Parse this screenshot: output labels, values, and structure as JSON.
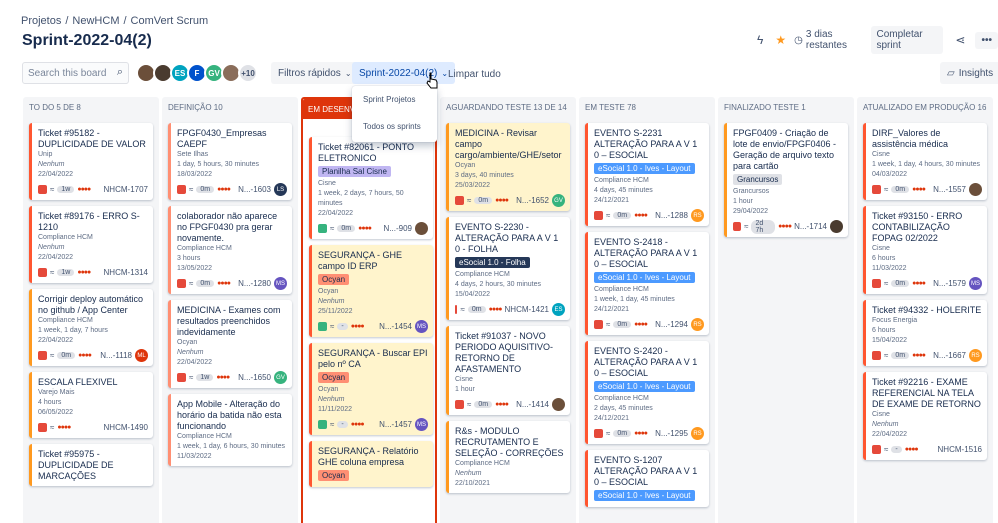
{
  "breadcrumb": [
    "Projetos",
    "/",
    "NewHCM",
    "/",
    "ComVert Scrum"
  ],
  "title": "Sprint-2022-04(2)",
  "header": {
    "days_left": "3 dias restantes",
    "complete_sprint": "Completar sprint"
  },
  "search": {
    "placeholder": "Search this board"
  },
  "avatars": [
    {
      "initials": "",
      "color": "#6b4f3a"
    },
    {
      "initials": "",
      "color": "#4a3b2f"
    },
    {
      "initials": "ES",
      "color": "#00a3bf"
    },
    {
      "initials": "F",
      "color": "#0052cc"
    },
    {
      "initials": "GV",
      "color": "#36b37e"
    },
    {
      "initials": "",
      "color": "#8a6d5a"
    },
    {
      "initials": "+10",
      "color": "#dfe1e6"
    }
  ],
  "filters": {
    "quick": "Filtros rápidos",
    "sprint": "Sprint-2022-04(2)",
    "clear": "Limpar tudo",
    "insights": "Insights"
  },
  "dropdown": {
    "items": [
      "Sprint Projetos",
      "Todos os sprints"
    ]
  },
  "columns": [
    {
      "title": "TO DO 5 de 8",
      "cards": [
        {
          "title": "Ticket #95182 - DUPLICIDADE DE VALOR",
          "meta1": "Unip",
          "meta2": "Nenhum",
          "date": "22/04/2022",
          "pill": "1w",
          "key": "NHCM-1707",
          "color": "#ff5630",
          "avatar": "",
          "avc": ""
        },
        {
          "title": "Ticket #89176 - ERRO S-1210",
          "meta1": "Compliance HCM",
          "meta2": "Nenhum",
          "date": "22/04/2022",
          "pill": "1w",
          "key": "NHCM-1314",
          "color": "#ff5630",
          "avatar": "",
          "avc": ""
        },
        {
          "title": "Corrigir deploy automático no github / App Center",
          "meta1": "Compliance HCM",
          "meta2": "1 week, 1 day, 7 hours",
          "date": "22/04/2022",
          "pill": "0m",
          "key": "N...-1118",
          "color": "#ff991f",
          "avatar": "ML",
          "avc": "#de350b"
        },
        {
          "title": "ESCALA FLEXIVEL",
          "meta1": "Varejo Mais",
          "meta2": "4 hours",
          "date": "06/05/2022",
          "pill": "",
          "key": "NHCM-1490",
          "color": "#ff991f",
          "avatar": "",
          "avc": ""
        },
        {
          "title": "Ticket #95975 - DUPLICIDADE DE MARCAÇÕES",
          "meta1": "",
          "meta2": "",
          "date": "",
          "pill": "",
          "key": "",
          "color": "#ff991f",
          "avatar": "",
          "avc": ""
        }
      ]
    },
    {
      "title": "DEFINIÇÃO 10",
      "cards": [
        {
          "title": "FPGF0430_Empresas CAEPF",
          "meta1": "Sete Ilhas",
          "meta2": "1 day, 5 hours, 30 minutes",
          "date": "18/03/2022",
          "pill": "0m",
          "key": "N...-1603",
          "color": "#ff8f73",
          "avatar": "LS",
          "avc": "#253858"
        },
        {
          "title": "colaborador não aparece no FPGF0430 pra gerar novamente.",
          "meta1": "Compliance HCM",
          "meta2": "3 hours",
          "date": "13/05/2022",
          "pill": "0m",
          "key": "N...-1280",
          "color": "#ff8f73",
          "avatar": "MS",
          "avc": "#6554c0"
        },
        {
          "title": "MEDICINA - Exames com resultados preenchidos indevidamente",
          "meta1": "Ocyan",
          "meta2": "Nenhum",
          "date": "22/04/2022",
          "pill": "1w",
          "key": "N...-1650",
          "color": "#ff8f73",
          "avatar": "GV",
          "avc": "#36b37e"
        },
        {
          "title": "App Mobile - Alteração do horário da batida não esta funcionando",
          "meta1": "Compliance HCM",
          "meta2": "1 week, 1 day, 6 hours, 30 minutes",
          "date": "11/03/2022",
          "pill": "",
          "key": "",
          "color": "#ff8f73",
          "avatar": "",
          "avc": ""
        }
      ]
    },
    {
      "title": "EM DESENVOLVIMENTO",
      "cards": [
        {
          "title": "Ticket #82061 - PONTO ELETRONICO",
          "label": "Planilha Sal Cisne",
          "labc": "#c0b6f2",
          "meta1": "Cisne",
          "meta2": "1 week, 2 days, 7 hours, 50 minutes",
          "date": "22/04/2022",
          "pill": "0m",
          "key": "N...-909",
          "color": "#ff5630",
          "avatar": "",
          "avc": "#6b4f3a"
        },
        {
          "title": "SEGURANÇA - GHE campo ID ERP",
          "label": "Ocyan",
          "labc": "#ff8f73",
          "meta1": "Ocyan",
          "meta2": "Nenhum",
          "date": "25/11/2022",
          "pill": "-",
          "key": "N...-1454",
          "color": "#ff5630",
          "avatar": "MS",
          "avc": "#6554c0"
        },
        {
          "title": "SEGURANÇA - Buscar EPI pelo nº CA",
          "label": "Ocyan",
          "labc": "#ff8f73",
          "meta1": "Ocyan",
          "meta2": "Nenhum",
          "date": "11/11/2022",
          "pill": "-",
          "key": "N...-1457",
          "color": "#ff5630",
          "avatar": "MS",
          "avc": "#6554c0"
        },
        {
          "title": "SEGURANÇA - Relatório GHE coluna empresa",
          "label": "Ocyan",
          "labc": "#ff8f73",
          "meta1": "",
          "meta2": "",
          "date": "",
          "pill": "",
          "key": "",
          "color": "#ff5630",
          "avatar": "",
          "avc": ""
        }
      ]
    },
    {
      "title": "AGUARDANDO TESTE 13 de 14",
      "cards": [
        {
          "title": "MEDICINA - Revisar campo cargo/ambiente/GHE/setor",
          "meta1": "Ocyan",
          "meta2": "3 days, 40 minutes",
          "date": "25/03/2022",
          "pill": "0m",
          "key": "N...-1652",
          "color": "#ff991f",
          "avatar": "GV",
          "avc": "#36b37e"
        },
        {
          "title": "EVENTO S-2230 - ALTERAÇÃO PARA A V 1 0 - FOLHA",
          "label": "eSocial 1.0 - Folha",
          "labc": "#253858",
          "meta1": "Compliance HCM",
          "meta2": "4 days, 2 hours, 30 minutes",
          "date": "15/04/2022",
          "pill": "0m",
          "key": "NHCM-1421",
          "color": "#ff991f",
          "avatar": "ES",
          "avc": "#00a3bf"
        },
        {
          "title": "Ticket #91037 - NOVO PERIODO AQUISITIVO-RETORNO DE AFASTAMENTO",
          "meta1": "Cisne",
          "meta2": "1 hour",
          "date": "",
          "pill": "0m",
          "key": "N...-1414",
          "color": "#ff991f",
          "avatar": "",
          "avc": "#6b4f3a"
        },
        {
          "title": "R&s - MODULO RECRUTAMENTO E SELEÇÃO - CORREÇÕES",
          "meta1": "Compliance HCM",
          "meta2": "Nenhum",
          "date": "22/10/2021",
          "pill": "",
          "key": "",
          "color": "#ff991f",
          "avatar": "",
          "avc": ""
        }
      ]
    },
    {
      "title": "EM TESTE 78",
      "cards": [
        {
          "title": "EVENTO S-2231 ALTERAÇÃO PARA A V 1 0 – ESOCIAL",
          "label": "eSocial 1.0 - Ives - Layout",
          "labc": "#4c9aff",
          "meta1": "Compliance HCM",
          "meta2": "4 days, 45 minutes",
          "date": "24/12/2021",
          "pill": "0m",
          "key": "N...-1288",
          "color": "#ff5630",
          "avatar": "RS",
          "avc": "#ff991f"
        },
        {
          "title": "EVENTO S-2418 - ALTERAÇÃO PARA A V 1 0 – ESOCIAL",
          "label": "eSocial 1.0 - Ives - Layout",
          "labc": "#4c9aff",
          "meta1": "Compliance HCM",
          "meta2": "1 week, 1 day, 45 minutes",
          "date": "24/12/2021",
          "pill": "0m",
          "key": "N...-1294",
          "color": "#ff5630",
          "avatar": "RS",
          "avc": "#ff991f"
        },
        {
          "title": "EVENTO S-2420 - ALTERAÇÃO PARA A V 1 0 – ESOCIAL",
          "label": "eSocial 1.0 - Ives - Layout",
          "labc": "#4c9aff",
          "meta1": "Compliance HCM",
          "meta2": "2 days, 45 minutes",
          "date": "24/12/2021",
          "pill": "0m",
          "key": "N...-1295",
          "color": "#ff5630",
          "avatar": "RS",
          "avc": "#ff991f"
        },
        {
          "title": "EVENTO S-1207 ALTERAÇÃO PARA A V 1 0 – ESOCIAL",
          "label": "eSocial 1.0 - Ives - Layout",
          "labc": "#4c9aff",
          "meta1": "",
          "meta2": "",
          "date": "",
          "pill": "",
          "key": "",
          "color": "#ff5630",
          "avatar": "",
          "avc": ""
        }
      ]
    },
    {
      "title": "FINALIZADO TESTE 1",
      "cards": [
        {
          "title": "FPGF0409 - Criação de lote de envio/FPGF0406 - Geração de arquivo texto para cartão",
          "label": "Grancursos",
          "labc": "#dfe1e6",
          "meta1": "Grancursos",
          "meta2": "1 hour",
          "date": "29/04/2022",
          "pill": "2d 7h",
          "key": "N...-1714",
          "color": "#ff991f",
          "avatar": "",
          "avc": "#4a3b2f"
        }
      ]
    },
    {
      "title": "ATUALIZADO EM PRODUÇÃO 16",
      "cards": [
        {
          "title": "DIRF_Valores de assistência médica",
          "meta1": "Cisne",
          "meta2": "1 week, 1 day, 4 hours, 30 minutes",
          "date": "04/03/2022",
          "pill": "0m",
          "key": "N...-1557",
          "color": "#ff5630",
          "avatar": "",
          "avc": "#6b4f3a"
        },
        {
          "title": "Ticket #93150 - ERRO CONTABILIZAÇÃO FOPAG 02/2022",
          "meta1": "Cisne",
          "meta2": "6 hours",
          "date": "11/03/2022",
          "pill": "0m",
          "key": "N...-1579",
          "color": "#ff5630",
          "avatar": "MS",
          "avc": "#6554c0"
        },
        {
          "title": "Ticket #94332 - HOLERITE",
          "meta1": "Focus Energia",
          "meta2": "6 hours",
          "date": "15/04/2022",
          "pill": "0m",
          "key": "N...-1667",
          "color": "#ff5630",
          "avatar": "RS",
          "avc": "#ff991f"
        },
        {
          "title": "Ticket #92216 - EXAME REFERENCIAL NA TELA DE EXAME DE RETORNO",
          "meta1": "Cisne",
          "meta2": "Nenhum",
          "date": "22/04/2022",
          "pill": "-",
          "key": "NHCM-1516",
          "color": "#ff5630",
          "avatar": "",
          "avc": ""
        }
      ]
    }
  ]
}
